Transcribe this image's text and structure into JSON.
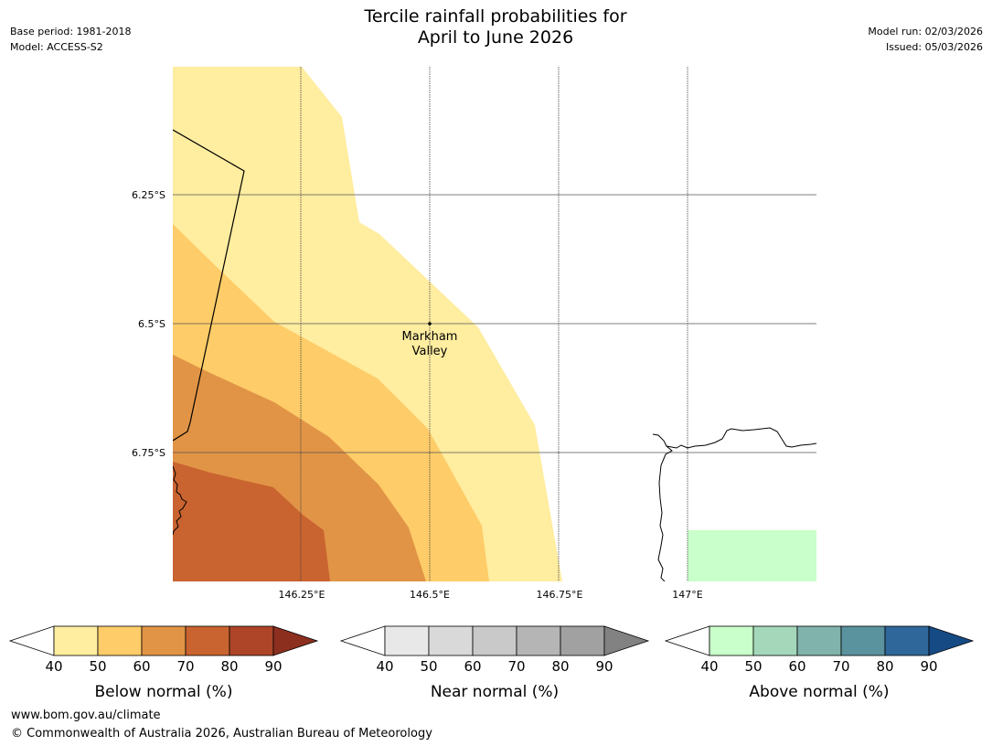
{
  "header": {
    "title_line1": "Tercile rainfall probabilities for",
    "title_line2": "April to June 2026",
    "base_period": "Base period: 1981-2018",
    "model": "Model: ACCESS-S2",
    "model_run": "Model run: 02/03/2026",
    "issued": "Issued: 05/03/2026"
  },
  "map": {
    "lat_labels": [
      "6.25°S",
      "6.5°S",
      "6.75°S"
    ],
    "lon_labels": [
      "146.25°E",
      "146.5°E",
      "146.75°E",
      "147°E"
    ],
    "location": {
      "name_line1": "Markham",
      "name_line2": "Valley",
      "lon": 146.5,
      "lat": -6.5
    },
    "fill_colors": {
      "below_40_50": "#ffeda0",
      "below_50_60": "#fecc68",
      "below_60_70": "#e19446",
      "below_70_80": "#c9632f",
      "above_40_50": "#c9ffca"
    }
  },
  "colorbars": [
    {
      "label": "Below normal (%)",
      "ticks": [
        "40",
        "50",
        "60",
        "70",
        "80",
        "90"
      ],
      "colors": [
        "#ffeda0",
        "#fecc68",
        "#e19446",
        "#c9632f",
        "#ae4528",
        "#8c2f1f"
      ]
    },
    {
      "label": "Near normal (%)",
      "ticks": [
        "40",
        "50",
        "60",
        "70",
        "80",
        "90"
      ],
      "colors": [
        "#e8e8e8",
        "#d9d9d9",
        "#c9c9c9",
        "#b5b5b5",
        "#a1a1a1",
        "#828282"
      ]
    },
    {
      "label": "Above normal (%)",
      "ticks": [
        "40",
        "50",
        "60",
        "70",
        "80",
        "90"
      ],
      "colors": [
        "#c9ffca",
        "#a5d8bb",
        "#80b3ac",
        "#5a929e",
        "#30679a",
        "#164a85"
      ]
    }
  ],
  "footer": {
    "url": "www.bom.gov.au/climate",
    "copyright": "© Commonwealth of Australia 2026, Australian Bureau of Meteorology"
  }
}
